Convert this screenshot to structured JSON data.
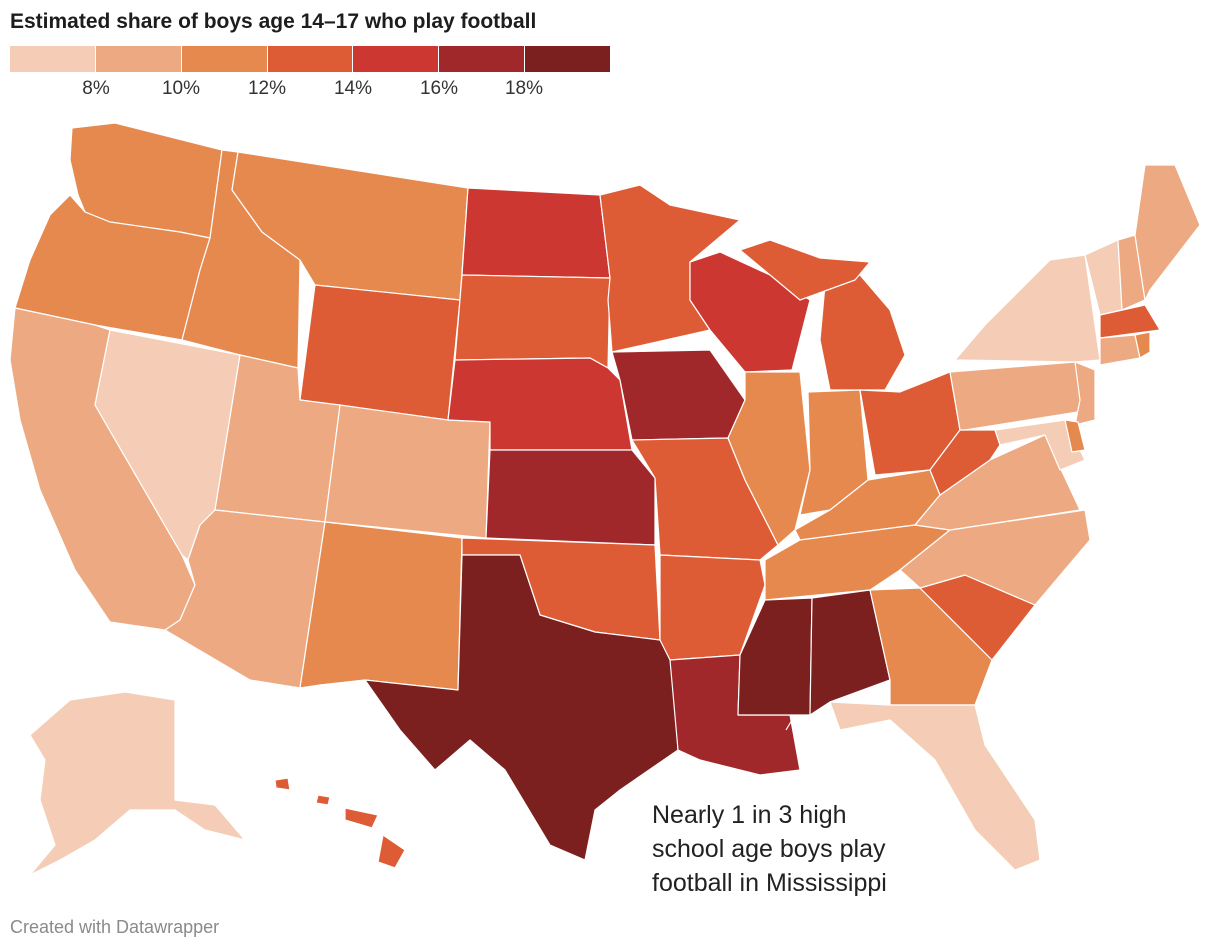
{
  "title": "Estimated share of boys age 14–17 who play football",
  "legend": {
    "colors": [
      "#f5cdb6",
      "#eda981",
      "#e6894f",
      "#de5c35",
      "#cd3731",
      "#a1282a",
      "#7b1f1f"
    ],
    "ticks": [
      "8%",
      "10%",
      "12%",
      "14%",
      "16%",
      "18%"
    ]
  },
  "annotation": {
    "line1": "Nearly 1 in 3 high",
    "line2": "school age boys play",
    "line3": "football in Mississippi"
  },
  "credit": "Created with Datawrapper"
}
